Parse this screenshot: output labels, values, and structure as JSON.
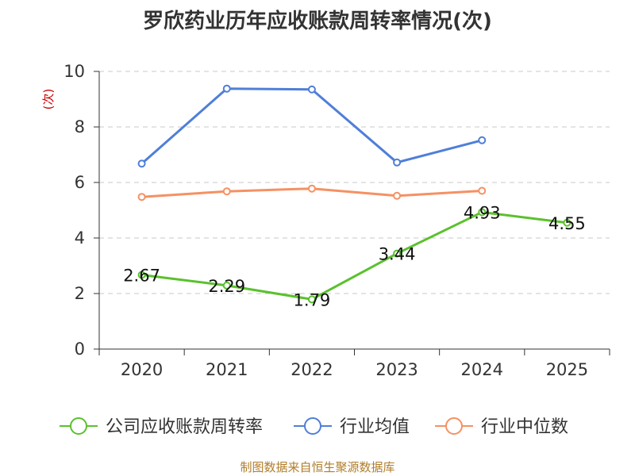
{
  "chart_data": {
    "type": "line",
    "title": "罗欣药业历年应收账款周转率情况(次)",
    "ylabel": "(次)",
    "xlabel": "",
    "categories": [
      "2020",
      "2021",
      "2022",
      "2023",
      "2024",
      "2025"
    ],
    "ylim": [
      0,
      10
    ],
    "yticks": [
      0,
      2,
      4,
      6,
      8,
      10
    ],
    "grid": true,
    "legend_position": "bottom",
    "series": [
      {
        "name": "公司应收账款周转率",
        "color": "#5ac12d",
        "values": [
          2.67,
          2.29,
          1.79,
          3.44,
          4.93,
          4.55
        ],
        "labels": [
          "2.67",
          "2.29",
          "1.79",
          "3.44",
          "4.93",
          "4.55"
        ]
      },
      {
        "name": "行业均值",
        "color": "#4f7fd8",
        "values": [
          6.68,
          9.38,
          9.35,
          6.72,
          7.52,
          null
        ]
      },
      {
        "name": "行业中位数",
        "color": "#f59163",
        "values": [
          5.48,
          5.68,
          5.78,
          5.52,
          5.7,
          null
        ]
      }
    ]
  },
  "source_note": "制图数据来自恒生聚源数据库"
}
